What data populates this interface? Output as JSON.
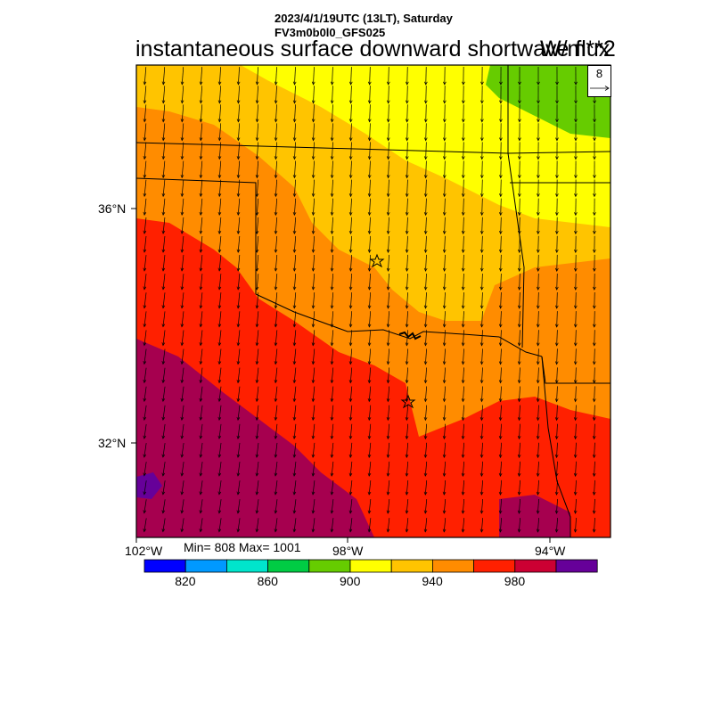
{
  "header": {
    "line1": "2023/4/1/19UTC (13LT), Saturday",
    "line2": "FV3m0b0l0_GFS025",
    "field_title": "instantaneous surface downward shortwave flux",
    "units": "W/m**2"
  },
  "map": {
    "lat_labels": [
      "36°N",
      "32°N"
    ],
    "lon_labels": [
      "102°W",
      "98°W",
      "94°W"
    ],
    "region_colors": {
      "purple": "#a6004f",
      "dark_violet": "#660099",
      "red": "#ff2000",
      "orange": "#ff8c00",
      "gold": "#ffc400",
      "yellow": "#ffff00",
      "green": "#66cc00"
    },
    "markers": [
      "star-marker",
      "star-marker"
    ]
  },
  "vector_legend": {
    "reference_speed": "8"
  },
  "stats": {
    "text": "Min= 808 Max= 1001"
  },
  "colorbar": {
    "colors": [
      "#0000ff",
      "#0099ff",
      "#00e5cc",
      "#00cc44",
      "#66cc00",
      "#ffff00",
      "#ffc400",
      "#ff8c00",
      "#ff2000",
      "#cc0033",
      "#660099"
    ],
    "tick_labels": [
      "820",
      "860",
      "900",
      "940",
      "980"
    ]
  }
}
